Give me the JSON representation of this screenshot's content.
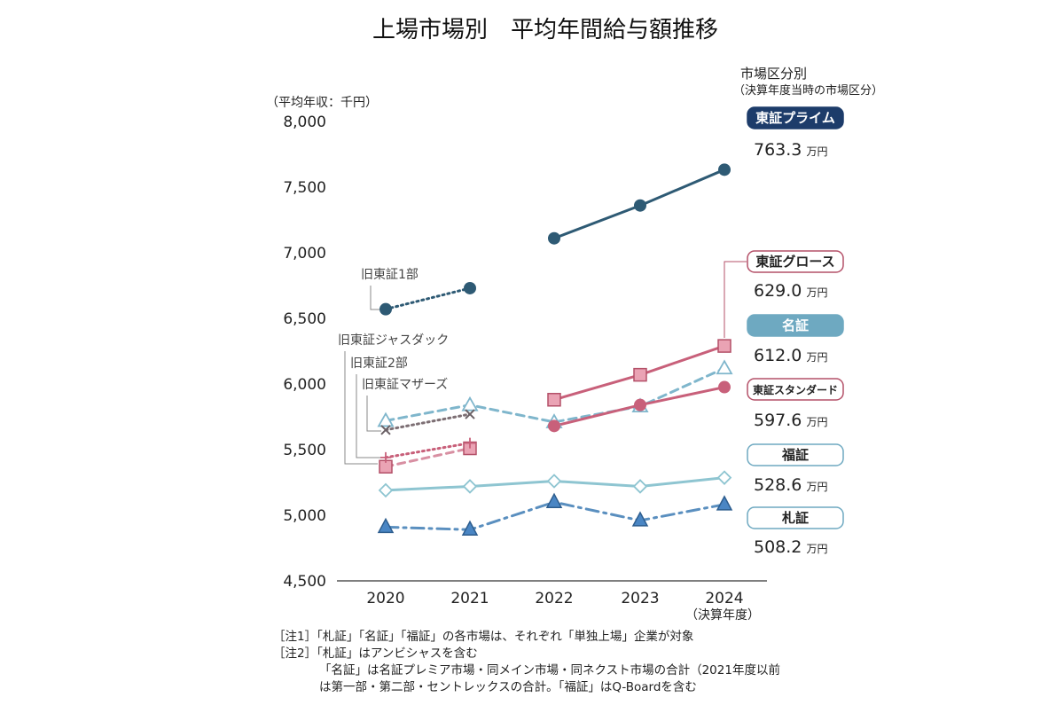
{
  "chart_data": {
    "type": "line",
    "title": "上場市場別　平均年間給与額推移",
    "ylabel": "（平均年収：千円）",
    "xlabel_note": "（決算年度）",
    "ylim": [
      4500,
      8000
    ],
    "y_ticks": [
      "4,500",
      "5,000",
      "5,500",
      "6,000",
      "6,500",
      "7,000",
      "7,500",
      "8,000"
    ],
    "categories": [
      "2020",
      "2021",
      "2022",
      "2023",
      "2024"
    ],
    "legend_title": "市場区分別",
    "legend_subtitle": "（決算年度当時の市場区分）",
    "grid": false,
    "series": [
      {
        "name": "東証プライム",
        "value_label": "763.3",
        "unit": "万円",
        "color": "#2e5a74",
        "label_bg": "#1d3c6a",
        "label_fg": "#ffffff",
        "marker": "circle",
        "style": "solid",
        "values": [
          null,
          null,
          7110,
          7360,
          7633
        ]
      },
      {
        "name": "東証グロース",
        "value_label": "629.0",
        "unit": "万円",
        "color": "#c8607a",
        "label_bg": "#ffffff",
        "label_fg": "#222222",
        "label_border": "#b45068",
        "marker": "square",
        "style": "solid",
        "values": [
          null,
          null,
          5880,
          6070,
          6290
        ]
      },
      {
        "name": "名証",
        "value_label": "612.0",
        "unit": "万円",
        "color": "#7fb6cc",
        "label_bg": "#6ea9c1",
        "label_fg": "#ffffff",
        "marker": "triangle-open",
        "style": "dashed",
        "values": [
          5720,
          5840,
          5710,
          5830,
          6120
        ]
      },
      {
        "name": "東証スタンダード",
        "value_label": "597.6",
        "unit": "万円",
        "color": "#c8607a",
        "label_bg": "#ffffff",
        "label_fg": "#222222",
        "label_border": "#b45068",
        "marker": "circle",
        "style": "solid",
        "values": [
          null,
          null,
          5680,
          5840,
          5976
        ]
      },
      {
        "name": "福証",
        "value_label": "528.6",
        "unit": "万円",
        "color": "#8ec5d1",
        "label_bg": "#ffffff",
        "label_fg": "#222222",
        "label_border": "#6ea9c1",
        "marker": "diamond-open",
        "style": "solid",
        "values": [
          5190,
          5220,
          5260,
          5220,
          5286
        ]
      },
      {
        "name": "札証",
        "value_label": "508.2",
        "unit": "万円",
        "color": "#5a8fbf",
        "label_bg": "#ffffff",
        "label_fg": "#222222",
        "label_border": "#6ea9c1",
        "marker": "triangle",
        "style": "dashdot",
        "values": [
          4910,
          4890,
          5100,
          4960,
          5082
        ]
      },
      {
        "name": "旧東証1部",
        "color": "#2e5a74",
        "marker": "circle",
        "style": "dotted",
        "values": [
          6570,
          6730,
          null,
          null,
          null
        ]
      },
      {
        "name": "旧東証ジャスダック",
        "color": "#c8607a",
        "marker": "square",
        "style": "dashed-light",
        "values": [
          5370,
          5510,
          null,
          null,
          null
        ]
      },
      {
        "name": "旧東証2部",
        "color": "#c8607a",
        "marker": "plus",
        "style": "dotted",
        "values": [
          5440,
          5550,
          null,
          null,
          null
        ]
      },
      {
        "name": "旧東証マザーズ",
        "color": "#7d6f74",
        "marker": "x",
        "style": "dotted",
        "values": [
          5650,
          5770,
          null,
          null,
          null
        ]
      }
    ]
  },
  "notes": [
    "［注1］「札証」「名証」「福証」の各市場は、それぞれ「単独上場」企業が対象",
    "［注2］「札証」はアンビシャスを含む",
    "「名証」は名証プレミア市場・同メイン市場・同ネクスト市場の合計（2021年度以前",
    "は第一部・第二部・セントレックスの合計。「福証」はQ-Boardを含む"
  ]
}
